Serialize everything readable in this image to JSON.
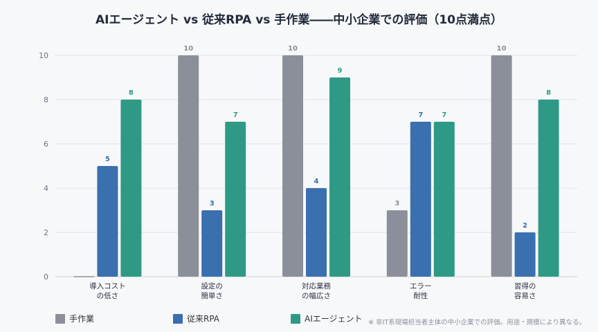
{
  "title": "AIエージェント vs 従来RPA vs 手作業――中小企業での評価（10点満点）",
  "note": "※ 非IT系現場担当者主体の中小企業での評価。用途・規模により異なる。",
  "chart_data": {
    "type": "bar",
    "ylim": [
      0,
      10
    ],
    "yticks": [
      0,
      2,
      4,
      6,
      8,
      10
    ],
    "grid": true,
    "legend_position": "bottom",
    "categories": [
      [
        "導入コスト",
        "の低さ"
      ],
      [
        "設定の",
        "簡単さ"
      ],
      [
        "対応業務",
        "の幅広さ"
      ],
      [
        "エラー",
        "耐性"
      ],
      [
        "習得の",
        "容易さ"
      ]
    ],
    "series": [
      {
        "name": "手作業",
        "color": "#8b8f99",
        "values": [
          0,
          10,
          10,
          3,
          10
        ]
      },
      {
        "name": "従来RPA",
        "color": "#3a6fb0",
        "values": [
          5,
          3,
          4,
          7,
          2
        ]
      },
      {
        "name": "AIエージェント",
        "color": "#2e9a86",
        "values": [
          8,
          7,
          9,
          7,
          8
        ]
      }
    ]
  }
}
